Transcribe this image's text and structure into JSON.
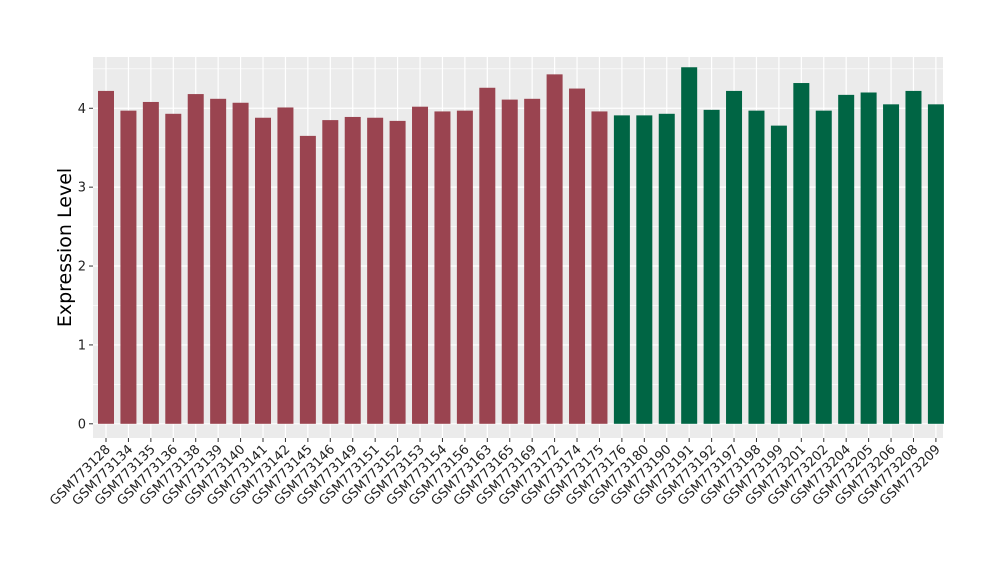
{
  "chart_data": {
    "type": "bar",
    "title": "",
    "xlabel": "",
    "ylabel": "Expression Level",
    "ylim": [
      -0.18,
      4.65
    ],
    "yticks": [
      0,
      1,
      2,
      3,
      4
    ],
    "grid": true,
    "legend": "none",
    "colors": {
      "group_1": "#9a4450",
      "group_2": "#006544",
      "panel": "#ebebeb",
      "gridline": "#ffffff"
    },
    "categories": [
      "GSM773128",
      "GSM773134",
      "GSM773135",
      "GSM773136",
      "GSM773138",
      "GSM773139",
      "GSM773140",
      "GSM773141",
      "GSM773142",
      "GSM773145",
      "GSM773146",
      "GSM773149",
      "GSM773151",
      "GSM773152",
      "GSM773153",
      "GSM773154",
      "GSM773156",
      "GSM773163",
      "GSM773165",
      "GSM773169",
      "GSM773172",
      "GSM773174",
      "GSM773175",
      "GSM773176",
      "GSM773180",
      "GSM773190",
      "GSM773191",
      "GSM773192",
      "GSM773197",
      "GSM773198",
      "GSM773199",
      "GSM773201",
      "GSM773202",
      "GSM773204",
      "GSM773205",
      "GSM773206",
      "GSM773208",
      "GSM773209"
    ],
    "values": [
      4.22,
      3.97,
      4.08,
      3.93,
      4.18,
      4.12,
      4.07,
      3.88,
      4.01,
      3.65,
      3.85,
      3.89,
      3.88,
      3.84,
      4.02,
      3.96,
      3.97,
      4.26,
      4.11,
      4.12,
      4.43,
      4.25,
      3.96,
      3.91,
      3.91,
      3.93,
      4.52,
      3.98,
      4.22,
      3.97,
      3.78,
      4.32,
      3.97,
      4.17,
      4.2,
      4.05,
      4.22,
      4.05
    ],
    "groups": [
      1,
      1,
      1,
      1,
      1,
      1,
      1,
      1,
      1,
      1,
      1,
      1,
      1,
      1,
      1,
      1,
      1,
      1,
      1,
      1,
      1,
      1,
      1,
      2,
      2,
      2,
      2,
      2,
      2,
      2,
      2,
      2,
      2,
      2,
      2,
      2,
      2,
      2
    ]
  }
}
